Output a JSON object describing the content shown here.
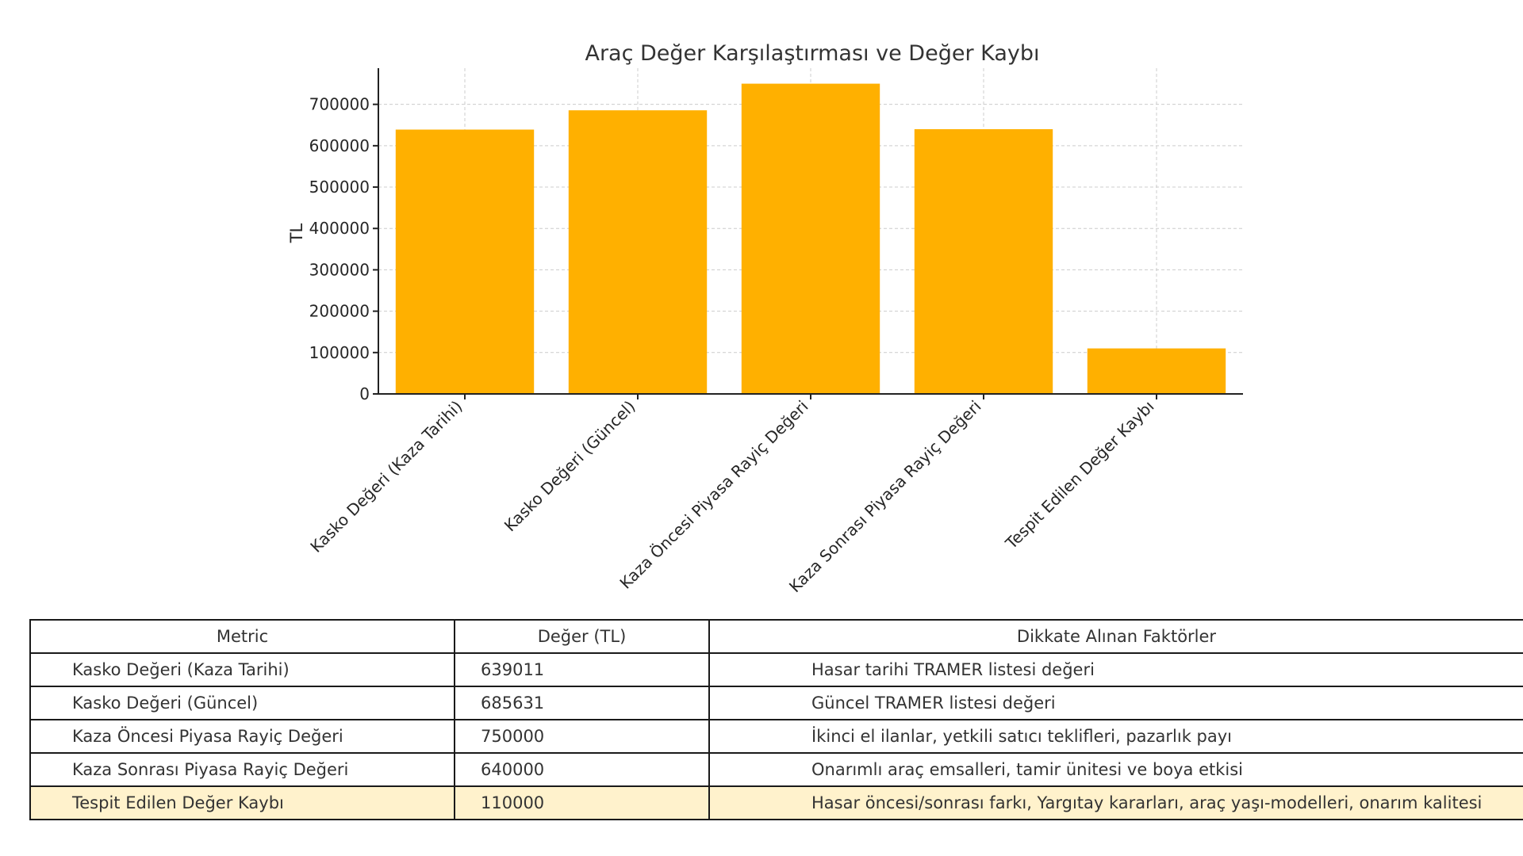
{
  "colors": {
    "bar": "#ffb000",
    "highlight_row": "#fff2cc"
  },
  "chart_data": {
    "type": "bar",
    "title": "Araç Değer Karşılaştırması ve Değer Kaybı",
    "xlabel": "",
    "ylabel": "TL",
    "categories": [
      "Kasko Değeri (Kaza Tarihi)",
      "Kasko Değeri (Güncel)",
      "Kaza Öncesi Piyasa Rayiç Değeri",
      "Kaza Sonrası Piyasa Rayiç Değeri",
      "Tespit Edilen Değer Kaybı"
    ],
    "values": [
      639011,
      685631,
      750000,
      640000,
      110000
    ],
    "ylim": [
      0,
      787500
    ],
    "yticks": [
      0,
      100000,
      200000,
      300000,
      400000,
      500000,
      600000,
      700000
    ],
    "ytick_labels": [
      "0",
      "100000",
      "200000",
      "300000",
      "400000",
      "500000",
      "600000",
      "700000"
    ],
    "grid": true,
    "legend": "none"
  },
  "table": {
    "headers": [
      "Metric",
      "Değer (TL)",
      "Dikkate Alınan Faktörler"
    ],
    "rows": [
      [
        "Kasko Değeri (Kaza Tarihi)",
        "639011",
        "Hasar tarihi TRAMER listesi değeri"
      ],
      [
        "Kasko Değeri (Güncel)",
        "685631",
        "Güncel TRAMER listesi değeri"
      ],
      [
        "Kaza Öncesi Piyasa Rayiç Değeri",
        "750000",
        "İkinci el ilanlar, yetkili satıcı teklifleri, pazarlık payı"
      ],
      [
        "Kaza Sonrası Piyasa Rayiç Değeri",
        "640000",
        "Onarımlı araç emsalleri, tamir ünitesi ve boya etkisi"
      ],
      [
        "Tespit Edilen Değer Kaybı",
        "110000",
        "Hasar öncesi/sonrası farkı, Yargıtay kararları, araç yaşı-modelleri, onarım kalitesi"
      ]
    ]
  }
}
